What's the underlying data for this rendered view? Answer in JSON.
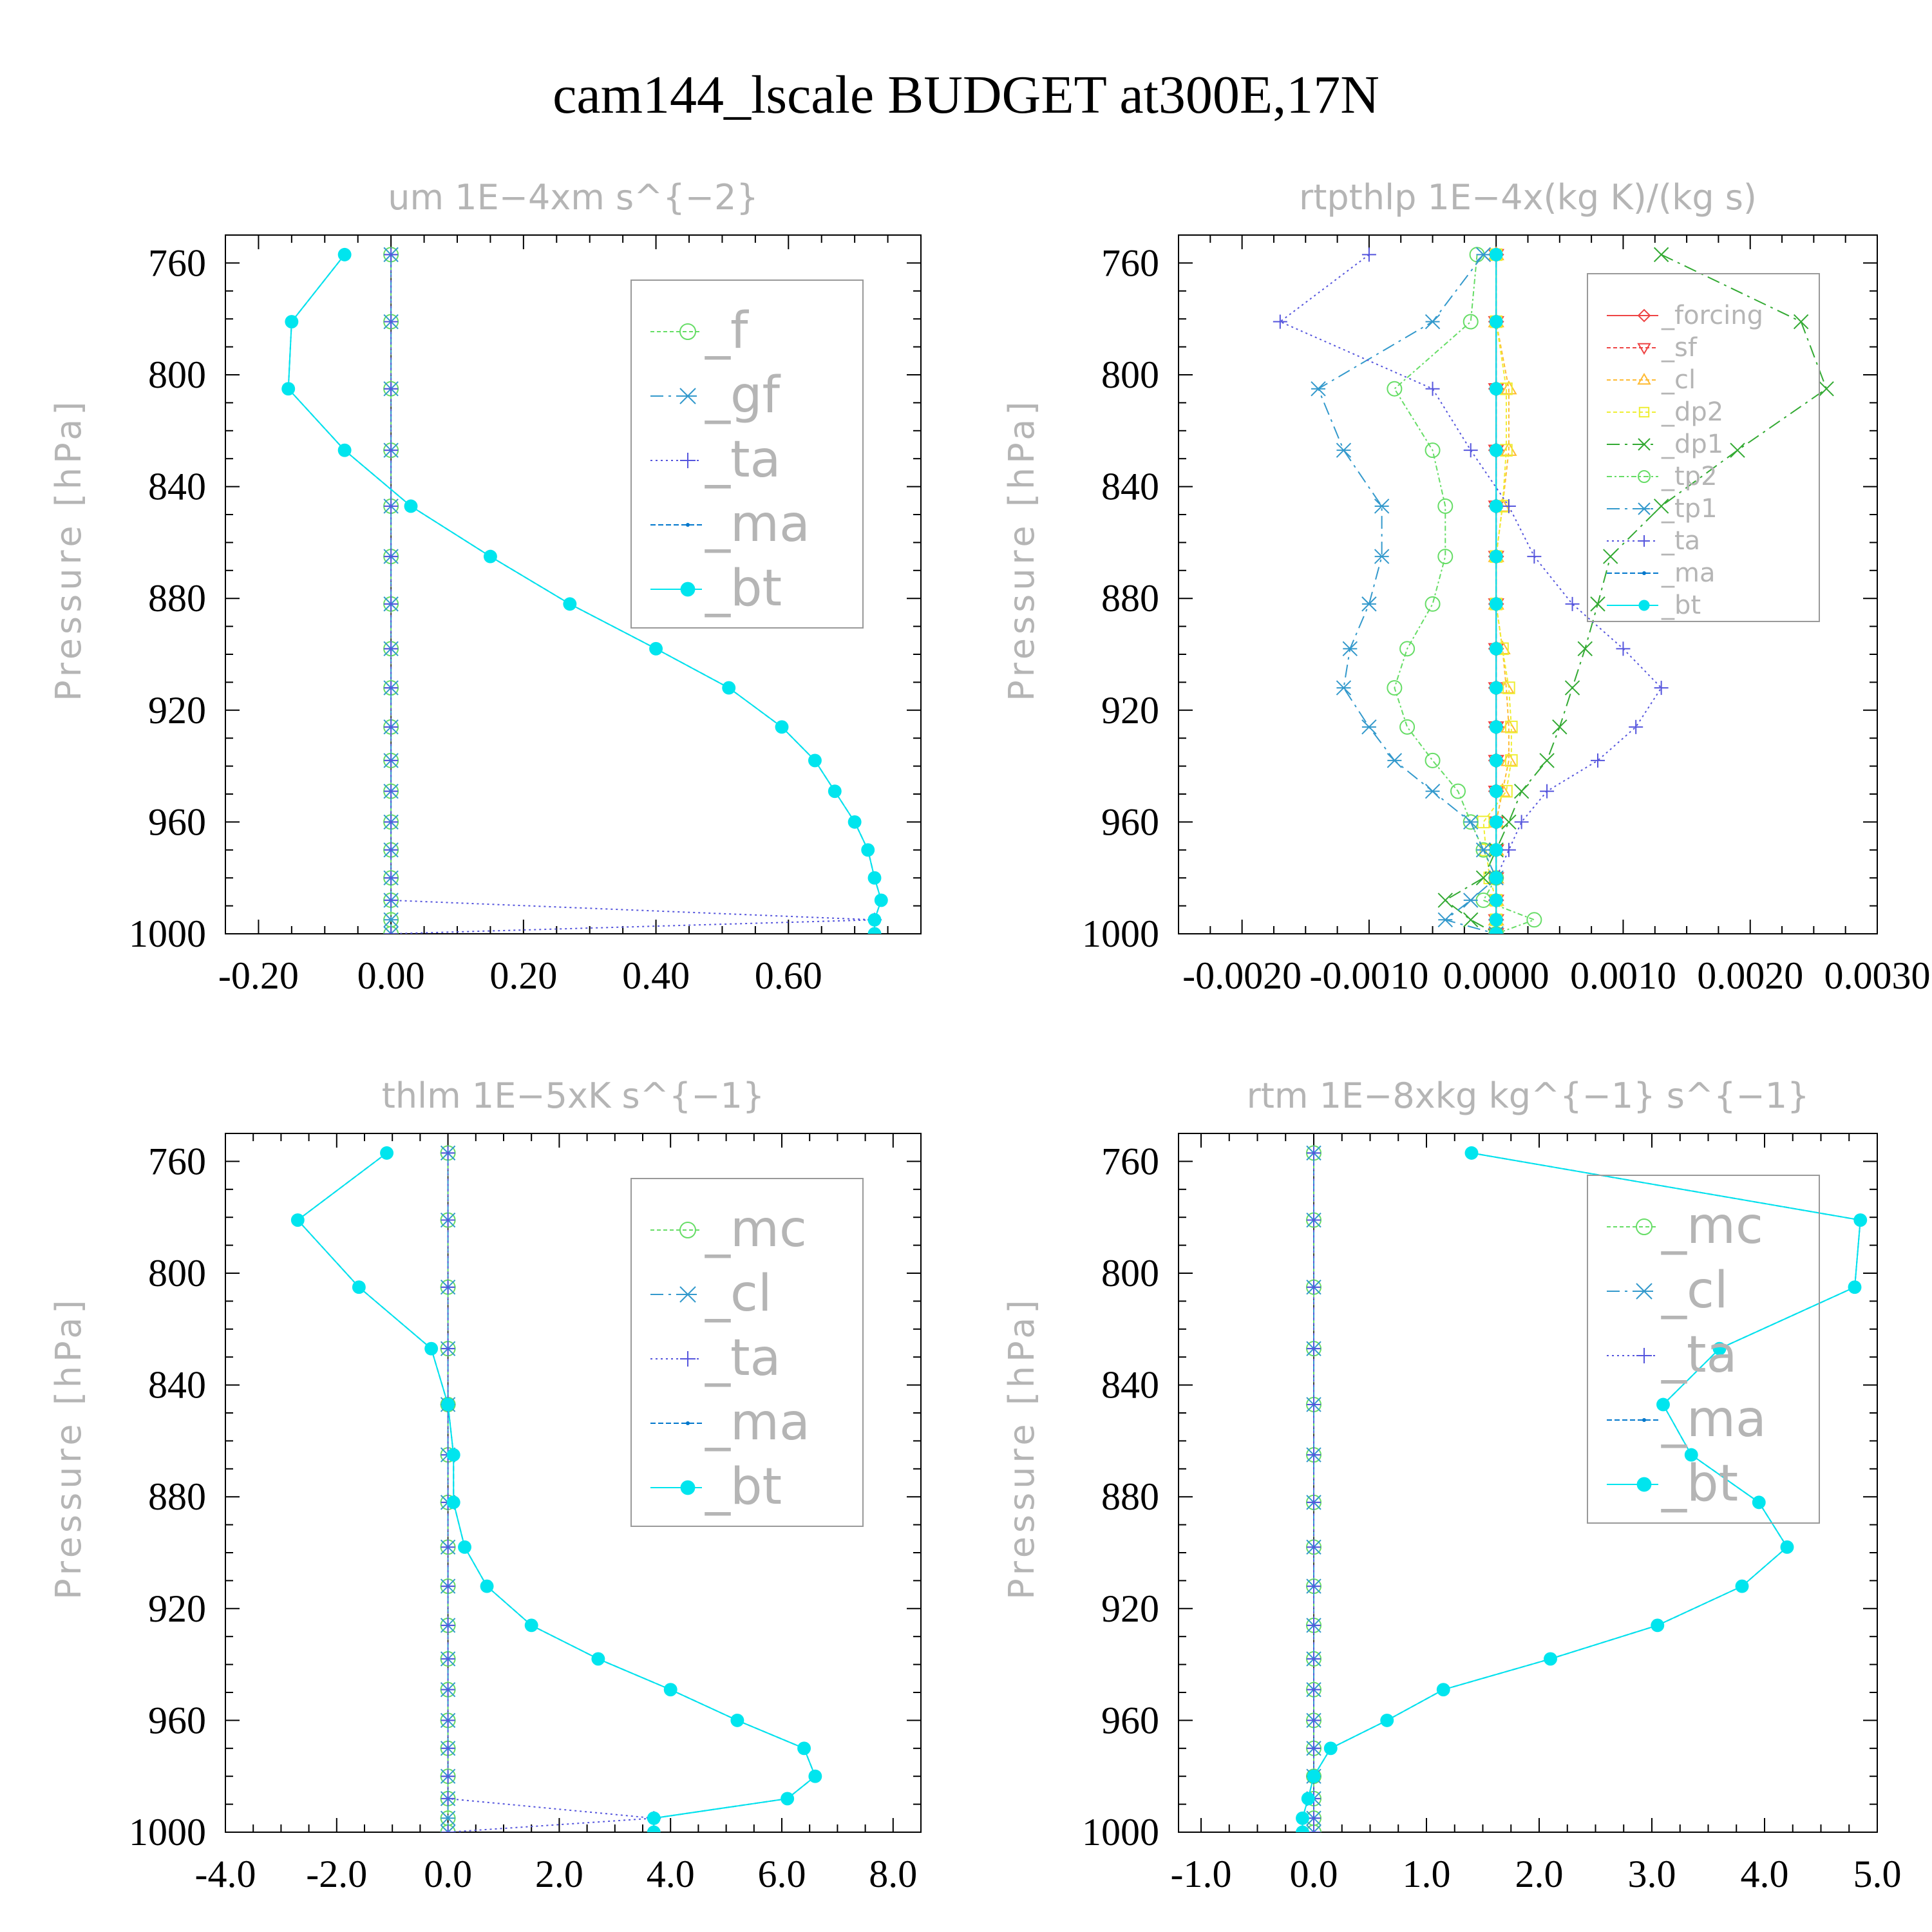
{
  "title": "cam144_lscale  BUDGET at300E,17N",
  "chart_data": [
    {
      "type": "line",
      "title": "um   1E−4xm s^{−2}",
      "ylabel": "Pressure [hPa]",
      "xlim": [
        -0.25,
        0.8
      ],
      "ylim": [
        750,
        1000
      ],
      "yticks": [
        760,
        800,
        840,
        880,
        920,
        960,
        1000
      ],
      "yticklabels": [
        "760",
        "800",
        "840",
        "880",
        "920",
        "960",
        "1000"
      ],
      "xticks": [
        -0.2,
        0.0,
        0.2,
        0.4,
        0.6
      ],
      "xticklabels": [
        "-0.20",
        "0.00",
        "0.20",
        "0.40",
        "0.60"
      ],
      "pressure": [
        757,
        781,
        805,
        827,
        847,
        865,
        882,
        898,
        912,
        926,
        938,
        949,
        960,
        970,
        980,
        988,
        995,
        1000
      ],
      "series": [
        {
          "name": "_f",
          "color": "#66dd66",
          "marker": "circle",
          "dash": "6,4",
          "values": [
            0,
            0,
            0,
            0,
            0,
            0,
            0,
            0,
            0,
            0,
            0,
            0,
            0,
            0,
            0,
            0,
            0,
            0
          ]
        },
        {
          "name": "_gf",
          "color": "#3399cc",
          "marker": "asterisk",
          "dash": "20,8,4,8",
          "values": [
            0,
            0,
            0,
            0,
            0,
            0,
            0,
            0,
            0,
            0,
            0,
            0,
            0,
            0,
            0,
            0,
            0,
            0
          ]
        },
        {
          "name": "_ta",
          "color": "#5555dd",
          "marker": "plus",
          "dash": "3,5",
          "values": [
            0,
            0,
            0,
            0,
            0,
            0,
            0,
            0,
            0,
            0,
            0,
            0,
            0,
            0,
            0,
            0,
            0.73,
            0
          ]
        },
        {
          "name": "_ma",
          "color": "#0077cc",
          "marker": "dot",
          "dash": "8,4",
          "values": [
            -0.07,
            -0.15,
            -0.155,
            -0.07,
            0.03,
            0.15,
            0.27,
            0.4,
            0.51,
            0.59,
            0.64,
            0.67,
            0.7,
            0.72,
            0.73,
            0.74,
            0.73,
            0.73
          ]
        },
        {
          "name": "_bt",
          "color": "#00e5ee",
          "marker": "bigdot",
          "dash": "",
          "values": [
            -0.07,
            -0.15,
            -0.155,
            -0.07,
            0.03,
            0.15,
            0.27,
            0.4,
            0.51,
            0.59,
            0.64,
            0.67,
            0.7,
            0.72,
            0.73,
            0.74,
            0.73,
            0.73
          ]
        }
      ]
    },
    {
      "type": "line",
      "title": "rtpthlp   1E−4x(kg K)/(kg s)",
      "ylabel": "Pressure [hPa]",
      "xlim": [
        -0.0025,
        0.003
      ],
      "ylim": [
        750,
        1000
      ],
      "yticks": [
        760,
        800,
        840,
        880,
        920,
        960,
        1000
      ],
      "yticklabels": [
        "760",
        "800",
        "840",
        "880",
        "920",
        "960",
        "1000"
      ],
      "xticks": [
        -0.002,
        -0.001,
        0.0,
        0.001,
        0.002,
        0.003
      ],
      "xticklabels": [
        "-0.0020",
        "-0.0010",
        "0.0000",
        "0.0010",
        "0.0020",
        "0.0030"
      ],
      "pressure": [
        757,
        781,
        805,
        827,
        847,
        865,
        882,
        898,
        912,
        926,
        938,
        949,
        960,
        970,
        980,
        988,
        995,
        1000
      ],
      "series": [
        {
          "name": "_forcing",
          "color": "#ee4444",
          "marker": "diamond",
          "dash": "",
          "values": [
            0,
            0,
            0,
            0,
            0,
            0,
            0,
            0,
            0,
            0,
            0,
            0,
            0,
            0,
            0,
            0,
            0,
            0
          ]
        },
        {
          "name": "_sf",
          "color": "#ee4444",
          "marker": "tri-down",
          "dash": "6,4",
          "values": [
            0,
            0,
            0,
            0,
            0,
            0,
            0,
            0,
            0,
            0,
            0,
            0,
            0,
            0,
            0,
            0,
            0,
            0
          ]
        },
        {
          "name": "_cl",
          "color": "#ffbb33",
          "marker": "tri-up",
          "dash": "6,4",
          "values": [
            0,
            0,
            0.0001,
            0.0001,
            5e-05,
            0,
            0,
            5e-05,
            8e-05,
            0.0001,
            0.0001,
            5e-05,
            0,
            0,
            0,
            0,
            0,
            0
          ]
        },
        {
          "name": "_dp2",
          "color": "#eeee33",
          "marker": "square",
          "dash": "6,4",
          "values": [
            0,
            0,
            8e-05,
            8e-05,
            5e-05,
            0,
            0,
            5e-05,
            0.0001,
            0.00012,
            0.00012,
            8e-05,
            -0.0001,
            -8e-05,
            -5e-05,
            0,
            0,
            0
          ]
        },
        {
          "name": "_dp1",
          "color": "#33aa33",
          "marker": "cross",
          "dash": "20,8,4,8",
          "values": [
            0.0013,
            0.0024,
            0.0026,
            0.0019,
            0.0013,
            0.0009,
            0.0008,
            0.0007,
            0.0006,
            0.0005,
            0.0004,
            0.0002,
            0.0001,
            0,
            -0.0001,
            -0.0004,
            -0.0002,
            0
          ]
        },
        {
          "name": "_tp2",
          "color": "#66dd66",
          "marker": "circle",
          "dash": "8,4,3,4",
          "values": [
            -0.00015,
            -0.0002,
            -0.0008,
            -0.0005,
            -0.0004,
            -0.0004,
            -0.0005,
            -0.0007,
            -0.0008,
            -0.0007,
            -0.0005,
            -0.0003,
            -0.0002,
            -0.0001,
            0,
            -0.0001,
            0.0003,
            0
          ]
        },
        {
          "name": "_tp1",
          "color": "#3399cc",
          "marker": "asterisk",
          "dash": "20,8,4,8",
          "values": [
            -0.0001,
            -0.0005,
            -0.0014,
            -0.0012,
            -0.0009,
            -0.0009,
            -0.001,
            -0.00115,
            -0.0012,
            -0.001,
            -0.0008,
            -0.0005,
            -0.0002,
            -0.0001,
            0,
            -0.0002,
            -0.0004,
            0
          ]
        },
        {
          "name": "_ta",
          "color": "#5555dd",
          "marker": "plus",
          "dash": "3,5",
          "values": [
            -0.001,
            -0.0017,
            -0.0005,
            -0.0002,
            0.0001,
            0.0003,
            0.0006,
            0.001,
            0.0013,
            0.0011,
            0.0008,
            0.0004,
            0.0002,
            0.0001,
            0,
            0,
            0,
            0
          ]
        },
        {
          "name": "_ma",
          "color": "#0077cc",
          "marker": "dot",
          "dash": "8,4",
          "values": [
            0,
            0,
            0,
            0,
            0,
            0,
            0,
            0,
            0,
            0,
            0,
            0,
            0,
            0,
            0,
            0,
            0,
            0
          ]
        },
        {
          "name": "_bt",
          "color": "#00e5ee",
          "marker": "bigdot",
          "dash": "",
          "values": [
            0,
            0,
            0,
            0,
            0,
            0,
            0,
            0,
            0,
            0,
            0,
            0,
            0,
            0,
            0,
            0,
            0,
            0
          ]
        }
      ]
    },
    {
      "type": "line",
      "title": "thlm   1E−5xK s^{−1}",
      "ylabel": "Pressure [hPa]",
      "xlim": [
        -4.0,
        8.5
      ],
      "ylim": [
        750,
        1000
      ],
      "yticks": [
        760,
        800,
        840,
        880,
        920,
        960,
        1000
      ],
      "yticklabels": [
        "760",
        "800",
        "840",
        "880",
        "920",
        "960",
        "1000"
      ],
      "xticks": [
        -4.0,
        -2.0,
        0.0,
        2.0,
        4.0,
        6.0,
        8.0
      ],
      "xticklabels": [
        "-4.0",
        "-2.0",
        "0.0",
        "2.0",
        "4.0",
        "6.0",
        "8.0"
      ],
      "pressure": [
        757,
        781,
        805,
        827,
        847,
        865,
        882,
        898,
        912,
        926,
        938,
        949,
        960,
        970,
        980,
        988,
        995,
        1000
      ],
      "series": [
        {
          "name": "_mc",
          "color": "#66dd66",
          "marker": "circle",
          "dash": "6,4",
          "values": [
            0,
            0,
            0,
            0,
            0,
            0,
            0,
            0,
            0,
            0,
            0,
            0,
            0,
            0,
            0,
            0,
            0,
            0
          ]
        },
        {
          "name": "_cl",
          "color": "#3399cc",
          "marker": "asterisk",
          "dash": "20,8,4,8",
          "values": [
            0,
            0,
            0,
            0,
            0,
            0,
            0,
            0,
            0,
            0,
            0,
            0,
            0,
            0,
            0,
            0,
            0,
            0
          ]
        },
        {
          "name": "_ta",
          "color": "#5555dd",
          "marker": "plus",
          "dash": "3,5",
          "values": [
            0,
            0,
            0,
            0,
            0,
            0,
            0,
            0,
            0,
            0,
            0,
            0,
            0,
            0,
            0,
            0,
            3.7,
            0
          ]
        },
        {
          "name": "_ma",
          "color": "#0077cc",
          "marker": "dot",
          "dash": "8,4",
          "values": [
            -1.1,
            -2.7,
            -1.6,
            -0.3,
            0,
            0.1,
            0.1,
            0.3,
            0.7,
            1.5,
            2.7,
            4.0,
            5.2,
            6.4,
            6.6,
            6.1,
            3.7,
            3.7
          ]
        },
        {
          "name": "_bt",
          "color": "#00e5ee",
          "marker": "bigdot",
          "dash": "",
          "values": [
            -1.1,
            -2.7,
            -1.6,
            -0.3,
            0,
            0.1,
            0.1,
            0.3,
            0.7,
            1.5,
            2.7,
            4.0,
            5.2,
            6.4,
            6.6,
            6.1,
            3.7,
            3.7
          ]
        }
      ]
    },
    {
      "type": "line",
      "title": "rtm   1E−8xkg kg^{−1} s^{−1}",
      "ylabel": "Pressure [hPa]",
      "xlim": [
        -1.2,
        5.0
      ],
      "ylim": [
        750,
        1000
      ],
      "yticks": [
        760,
        800,
        840,
        880,
        920,
        960,
        1000
      ],
      "yticklabels": [
        "760",
        "800",
        "840",
        "880",
        "920",
        "960",
        "1000"
      ],
      "xticks": [
        -1.0,
        0.0,
        1.0,
        2.0,
        3.0,
        4.0,
        5.0
      ],
      "xticklabels": [
        "-1.0",
        "0.0",
        "1.0",
        "2.0",
        "3.0",
        "4.0",
        "5.0"
      ],
      "pressure": [
        757,
        781,
        805,
        827,
        847,
        865,
        882,
        898,
        912,
        926,
        938,
        949,
        960,
        970,
        980,
        988,
        995,
        1000
      ],
      "series": [
        {
          "name": "_mc",
          "color": "#66dd66",
          "marker": "circle",
          "dash": "6,4",
          "values": [
            0,
            0,
            0,
            0,
            0,
            0,
            0,
            0,
            0,
            0,
            0,
            0,
            0,
            0,
            0,
            0,
            0,
            0
          ]
        },
        {
          "name": "_cl",
          "color": "#3399cc",
          "marker": "asterisk",
          "dash": "20,8,4,8",
          "values": [
            0,
            0,
            0,
            0,
            0,
            0,
            0,
            0,
            0,
            0,
            0,
            0,
            0,
            0,
            0,
            0,
            0,
            0
          ]
        },
        {
          "name": "_ta",
          "color": "#5555dd",
          "marker": "plus",
          "dash": "3,5",
          "values": [
            0,
            0,
            0,
            0,
            0,
            0,
            0,
            0,
            0,
            0,
            0,
            0,
            0,
            0,
            0,
            0,
            0,
            0
          ]
        },
        {
          "name": "_ma",
          "color": "#0077cc",
          "marker": "dot",
          "dash": "8,4",
          "values": [
            1.4,
            4.85,
            4.8,
            3.6,
            3.1,
            3.35,
            3.95,
            4.2,
            3.8,
            3.05,
            2.1,
            1.15,
            0.65,
            0.15,
            0,
            -0.05,
            -0.1,
            -0.1
          ]
        },
        {
          "name": "_bt",
          "color": "#00e5ee",
          "marker": "bigdot",
          "dash": "",
          "values": [
            1.4,
            4.85,
            4.8,
            3.6,
            3.1,
            3.35,
            3.95,
            4.2,
            3.8,
            3.05,
            2.1,
            1.15,
            0.65,
            0.15,
            0,
            -0.05,
            -0.1,
            -0.1
          ]
        }
      ]
    }
  ]
}
